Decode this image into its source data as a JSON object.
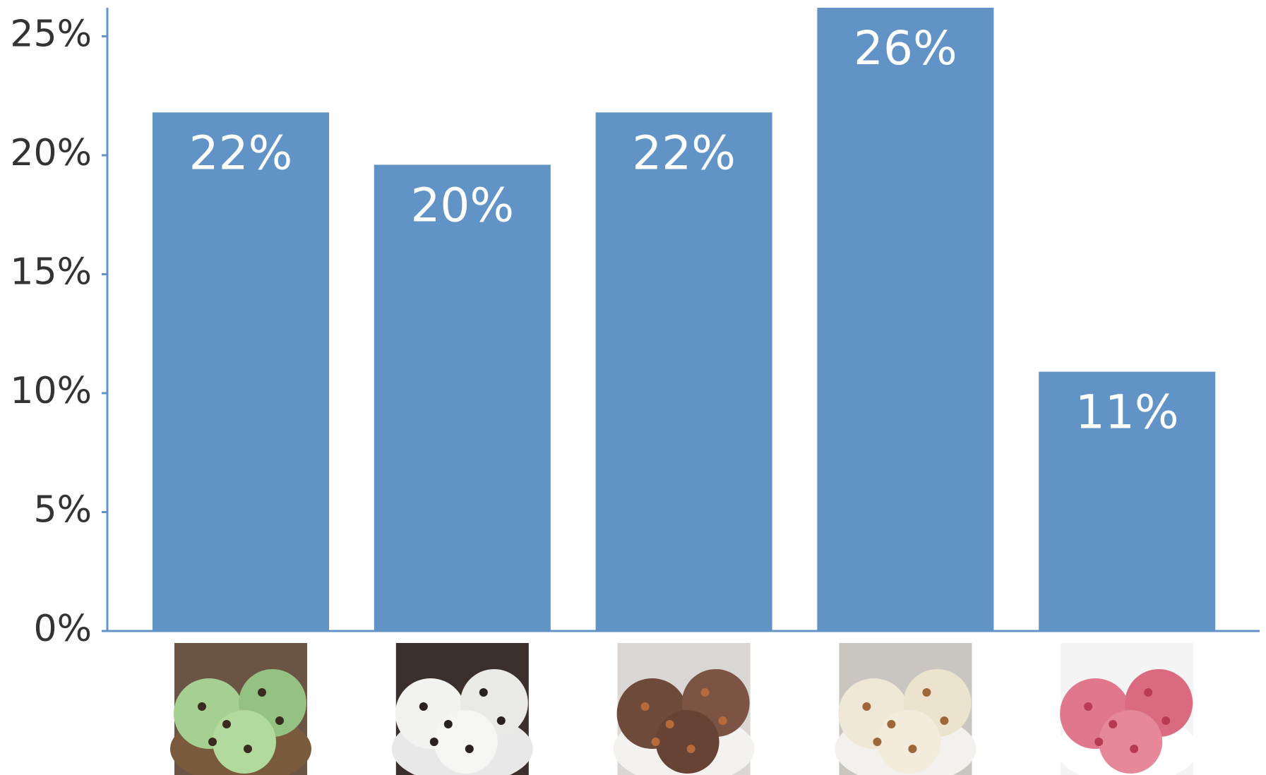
{
  "chart_data": {
    "type": "bar",
    "categories": [
      null,
      null,
      null,
      null,
      null
    ],
    "values": [
      21.8,
      19.6,
      21.8,
      26.2,
      10.9
    ],
    "value_labels": [
      "22%",
      "20%",
      "22%",
      "26%",
      "11%"
    ],
    "color": "#6193c7",
    "ylim": [
      0,
      26.2
    ],
    "yticks": [
      {
        "value": 0,
        "label": "0%"
      },
      {
        "value": 5,
        "label": "5%"
      },
      {
        "value": 10,
        "label": "10%"
      },
      {
        "value": 15,
        "label": "15%"
      },
      {
        "value": 20,
        "label": "20%"
      },
      {
        "value": 25,
        "label": "25%"
      }
    ],
    "grid": false
  }
}
